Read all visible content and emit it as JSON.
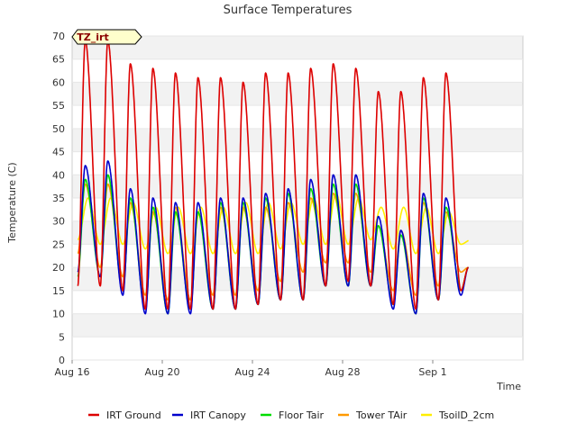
{
  "chart_data": {
    "type": "line",
    "title": "Surface Temperatures",
    "xlabel": "Time",
    "ylabel": "Temperature (C)",
    "tag": "TZ_irt",
    "ylim": [
      0,
      70
    ],
    "yticks": [
      0,
      5,
      10,
      15,
      20,
      25,
      30,
      35,
      40,
      45,
      50,
      55,
      60,
      65,
      70
    ],
    "xlim": [
      "2023-08-16",
      "2023-09-05"
    ],
    "xticks": [
      {
        "date": "2023-08-16",
        "label": "Aug 16"
      },
      {
        "date": "2023-08-20",
        "label": "Aug 20"
      },
      {
        "date": "2023-08-24",
        "label": "Aug 24"
      },
      {
        "date": "2023-08-28",
        "label": "Aug 28"
      },
      {
        "date": "2023-09-01",
        "label": "Sep 1"
      }
    ],
    "band_shading": "alternating gray bands every 10 units",
    "legend_position": "bottom",
    "days": [
      "2023-08-16",
      "2023-08-17",
      "2023-08-18",
      "2023-08-19",
      "2023-08-20",
      "2023-08-21",
      "2023-08-22",
      "2023-08-23",
      "2023-08-24",
      "2023-08-25",
      "2023-08-26",
      "2023-08-27",
      "2023-08-28",
      "2023-08-29",
      "2023-08-30",
      "2023-08-31",
      "2023-09-01",
      "2023-09-02"
    ],
    "series": [
      {
        "name": "IRT Ground",
        "color": "#dd0000",
        "daily_max": [
          69,
          69,
          64,
          63,
          62,
          61,
          61,
          60,
          62,
          62,
          63,
          64,
          63,
          58,
          58,
          61,
          62,
          20
        ],
        "daily_min": [
          16,
          16,
          15,
          11,
          11,
          11,
          11,
          11,
          12,
          13,
          13,
          16,
          17,
          16,
          12,
          11,
          13,
          15
        ]
      },
      {
        "name": "IRT Canopy",
        "color": "#0000cc",
        "daily_max": [
          42,
          43,
          37,
          35,
          34,
          34,
          35,
          35,
          36,
          37,
          39,
          40,
          40,
          31,
          28,
          36,
          35,
          20
        ],
        "daily_min": [
          19,
          18,
          14,
          10,
          10,
          10,
          11,
          11,
          12,
          13,
          13,
          16,
          16,
          16,
          11,
          10,
          13,
          14
        ]
      },
      {
        "name": "Floor Tair",
        "color": "#00dd00",
        "daily_max": [
          39,
          40,
          35,
          33,
          32,
          32,
          34,
          34,
          35,
          36,
          37,
          38,
          38,
          29,
          27,
          35,
          33,
          20
        ],
        "daily_min": [
          18,
          18,
          15,
          11,
          10,
          11,
          11,
          11,
          12,
          13,
          13,
          16,
          16,
          16,
          12,
          10,
          13,
          15
        ]
      },
      {
        "name": "Tower TAir",
        "color": "#ff9900",
        "daily_max": [
          38,
          38,
          34,
          32,
          33,
          32,
          33,
          33,
          33,
          34,
          35,
          36,
          36,
          29,
          28,
          34,
          32,
          20
        ],
        "daily_min": [
          23,
          20,
          18,
          14,
          13,
          13,
          14,
          14,
          15,
          17,
          19,
          21,
          21,
          19,
          15,
          14,
          16,
          19
        ]
      },
      {
        "name": "TsoilD_2cm",
        "color": "#ffee00",
        "daily_max": [
          35,
          35,
          34,
          33,
          33,
          33,
          33,
          34,
          34,
          34,
          35,
          36,
          35,
          33,
          33,
          33,
          32,
          26
        ],
        "daily_min": [
          26,
          25,
          25,
          24,
          23,
          23,
          23,
          23,
          23,
          24,
          25,
          25,
          25,
          26,
          24,
          23,
          23,
          25
        ]
      }
    ]
  }
}
